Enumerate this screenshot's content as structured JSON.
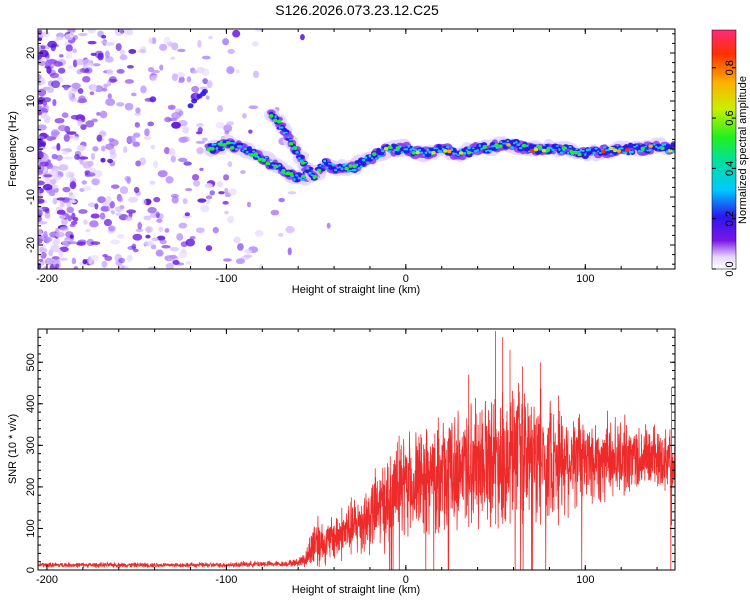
{
  "title": "S126.2026.073.23.12.C25",
  "chart_data": [
    {
      "type": "heatmap",
      "name": "spectrogram",
      "xlabel": "Height of straight line (km)",
      "ylabel": "Frequency (Hz)",
      "xlim": [
        -205,
        150
      ],
      "ylim": [
        -25,
        25
      ],
      "xticks": [
        -200,
        -100,
        0,
        100
      ],
      "yticks": [
        -20,
        -10,
        0,
        10,
        20
      ],
      "colorbar": {
        "label": "Normalized spectral amplitude",
        "range": [
          0.0,
          0.95
        ],
        "ticks": [
          0.0,
          0.2,
          0.4,
          0.6,
          0.8
        ]
      },
      "ridge": [
        {
          "x": -110,
          "y": 0
        },
        {
          "x": -100,
          "y": 1
        },
        {
          "x": -90,
          "y": 0
        },
        {
          "x": -80,
          "y": -2
        },
        {
          "x": -70,
          "y": -4
        },
        {
          "x": -60,
          "y": -6
        },
        {
          "x": -50,
          "y": -5
        },
        {
          "x": -45,
          "y": -3
        },
        {
          "x": -40,
          "y": -4
        },
        {
          "x": -30,
          "y": -4
        },
        {
          "x": -20,
          "y": -2
        },
        {
          "x": -10,
          "y": 0
        },
        {
          "x": 0,
          "y": 0
        },
        {
          "x": 10,
          "y": -1
        },
        {
          "x": 20,
          "y": 0
        },
        {
          "x": 30,
          "y": -1
        },
        {
          "x": 40,
          "y": 0
        },
        {
          "x": 50,
          "y": 0.5
        },
        {
          "x": 60,
          "y": 1
        },
        {
          "x": 70,
          "y": 0
        },
        {
          "x": 80,
          "y": 0
        },
        {
          "x": 90,
          "y": 0
        },
        {
          "x": 100,
          "y": -1
        },
        {
          "x": 110,
          "y": -0.5
        },
        {
          "x": 120,
          "y": 0
        },
        {
          "x": 130,
          "y": 0
        },
        {
          "x": 140,
          "y": 0.5
        },
        {
          "x": 150,
          "y": 0
        }
      ],
      "branch": [
        {
          "x": -75,
          "y": 7
        },
        {
          "x": -70,
          "y": 5
        },
        {
          "x": -65,
          "y": 2
        },
        {
          "x": -60,
          "y": -1
        },
        {
          "x": -55,
          "y": -4
        },
        {
          "x": -50,
          "y": -6
        }
      ]
    },
    {
      "type": "line",
      "name": "snr",
      "xlabel": "Height of straight line (km)",
      "ylabel": "SNR (10 * v/v)",
      "xlim": [
        -205,
        150
      ],
      "ylim": [
        0,
        580
      ],
      "xticks": [
        -200,
        -100,
        0,
        100
      ],
      "yticks": [
        0,
        100,
        200,
        300,
        400,
        500
      ],
      "series_color": "#ee2b2b",
      "envelope": {
        "x": [
          -205,
          -150,
          -100,
          -80,
          -70,
          -60,
          -55,
          -50,
          -45,
          -40,
          -30,
          -20,
          -10,
          0,
          20,
          40,
          60,
          80,
          100,
          120,
          150
        ],
        "mean": [
          12,
          12,
          12,
          15,
          14,
          18,
          30,
          80,
          60,
          80,
          100,
          130,
          170,
          200,
          230,
          270,
          280,
          270,
          265,
          270,
          270
        ],
        "amplitude": [
          6,
          6,
          6,
          8,
          6,
          10,
          25,
          80,
          45,
          60,
          70,
          90,
          110,
          120,
          130,
          150,
          160,
          140,
          110,
          90,
          70
        ]
      },
      "spikes": [
        {
          "x": 35,
          "y": 470
        },
        {
          "x": 50,
          "y": 575
        },
        {
          "x": 54,
          "y": 560
        },
        {
          "x": 58,
          "y": 530
        },
        {
          "x": 65,
          "y": 490
        },
        {
          "x": 75,
          "y": 500
        },
        {
          "x": 85,
          "y": 420
        },
        {
          "x": 148,
          "y": 440
        }
      ]
    }
  ]
}
